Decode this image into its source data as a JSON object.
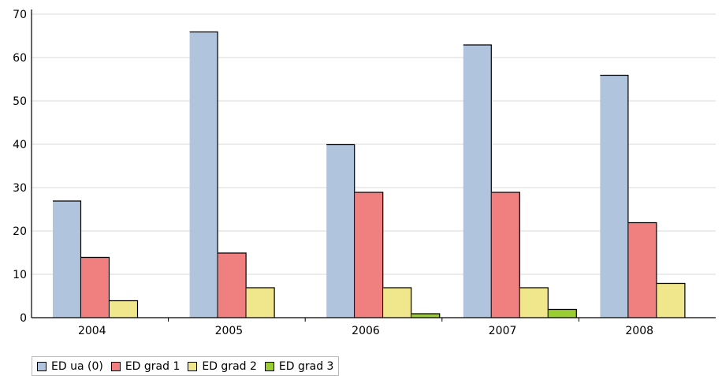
{
  "chart_data": {
    "type": "bar",
    "categories": [
      "2004",
      "2005",
      "2006",
      "2007",
      "2008"
    ],
    "series": [
      {
        "name": "ED ua (0)",
        "color": "#b0c4de",
        "values": [
          27,
          66,
          40,
          63,
          56
        ]
      },
      {
        "name": "ED grad 1",
        "color": "#f08080",
        "values": [
          14,
          15,
          29,
          29,
          22
        ]
      },
      {
        "name": "ED grad 2",
        "color": "#f0e68c",
        "values": [
          4,
          7,
          7,
          7,
          8
        ]
      },
      {
        "name": "ED grad 3",
        "color": "#9acd32",
        "values": [
          0,
          0,
          1,
          2,
          0
        ]
      }
    ],
    "ylim": [
      0,
      70
    ],
    "yticks": [
      "0",
      "10",
      "20",
      "30",
      "40",
      "50",
      "60",
      "70"
    ],
    "grid": true,
    "legend_position": "bottom-left"
  }
}
